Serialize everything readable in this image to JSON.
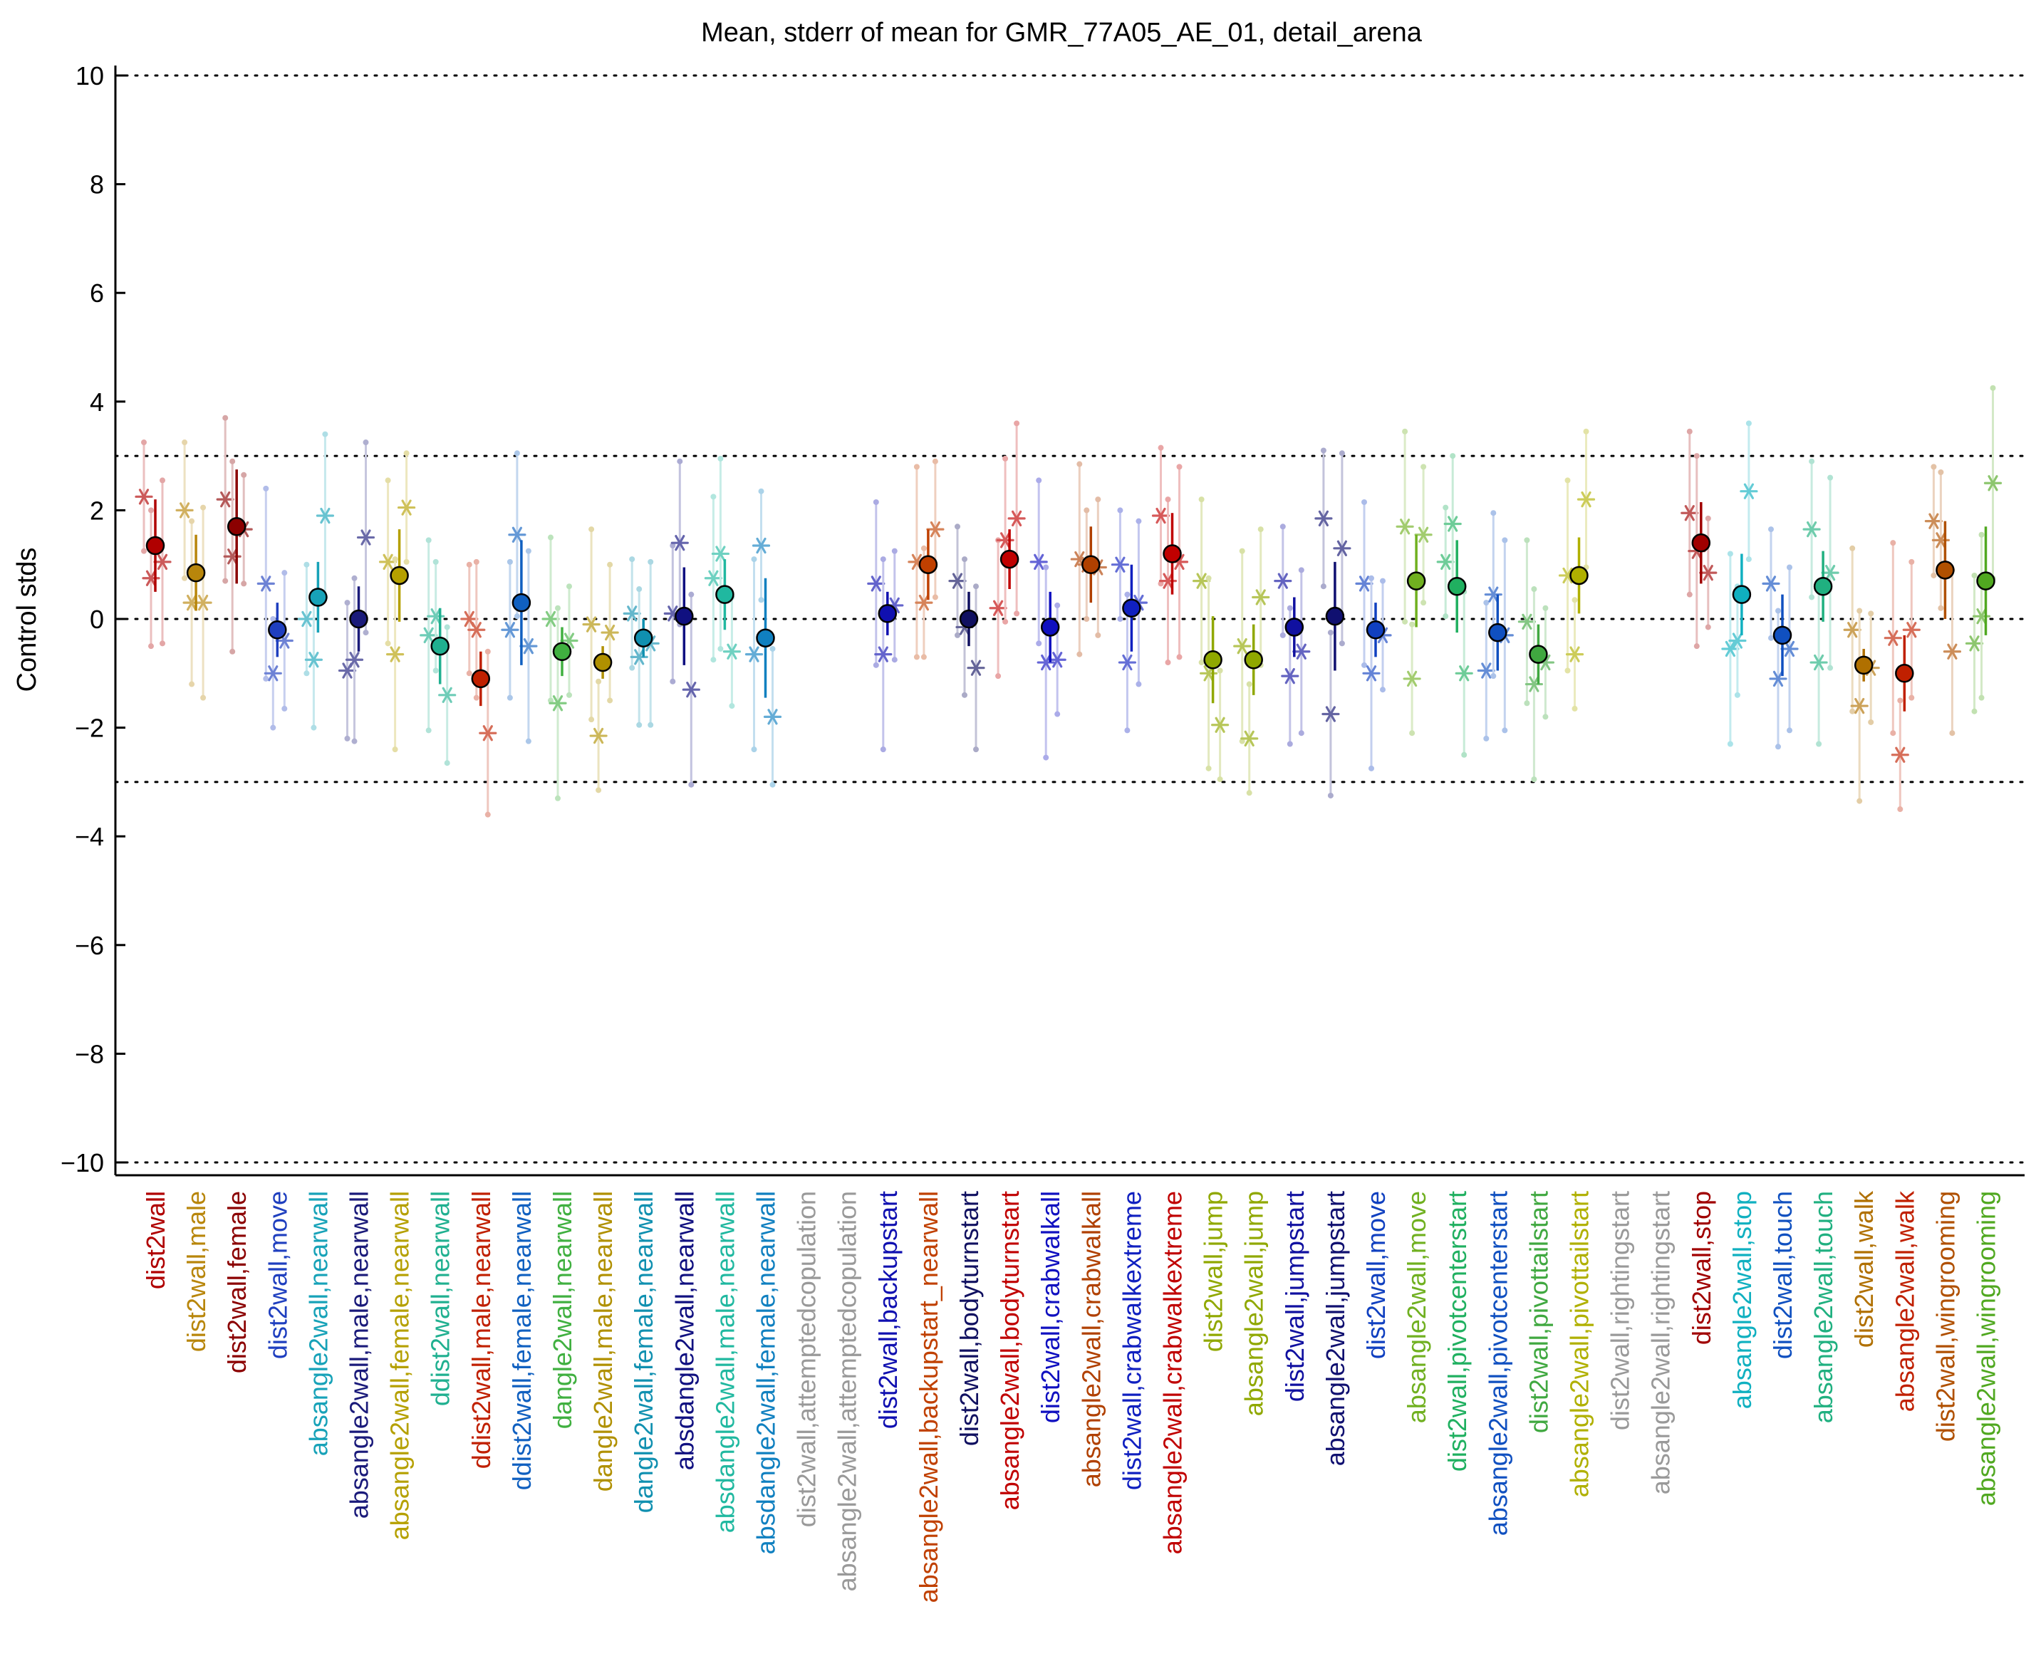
{
  "chart_data": {
    "type": "scatter",
    "title": "Mean, stderr of mean for GMR_77A05_AE_01, detail_arena",
    "xlabel": "",
    "ylabel": "Control stds",
    "ylim": [
      -10,
      10
    ],
    "yticks": [
      -10,
      -8,
      -6,
      -4,
      -2,
      0,
      2,
      4,
      6,
      8,
      10
    ],
    "reference_lines": [
      10,
      3,
      0,
      -3,
      -10
    ],
    "grid": false,
    "legend": "none",
    "categories": [
      "dist2wall",
      "dist2wall,male",
      "dist2wall,female",
      "dist2wall,move",
      "absangle2wall,nearwall",
      "absangle2wall,male,nearwall",
      "absangle2wall,female,nearwall",
      "ddist2wall,nearwall",
      "ddist2wall,male,nearwall",
      "ddist2wall,female,nearwall",
      "dangle2wall,nearwall",
      "dangle2wall,male,nearwall",
      "dangle2wall,female,nearwall",
      "absdangle2wall,nearwall",
      "absdangle2wall,male,nearwall",
      "absdangle2wall,female,nearwall",
      "dist2wall,attemptedcopulation",
      "absangle2wall,attemptedcopulation",
      "dist2wall,backupstart",
      "absangle2wall,backupstart_nearwall",
      "dist2wall,bodyturnstart",
      "absangle2wall,bodyturnstart",
      "dist2wall,crabwalkall",
      "absangle2wall,crabwalkall",
      "dist2wall,crabwalkextreme",
      "absangle2wall,crabwalkextreme",
      "dist2wall,jump",
      "absangle2wall,jump",
      "dist2wall,jumpstart",
      "absangle2wall,jumpstart",
      "dist2wall,move",
      "absangle2wall,move",
      "dist2wall,pivotcenterstart",
      "absangle2wall,pivotcenterstart",
      "dist2wall,pivottailstart",
      "absangle2wall,pivottailstart",
      "dist2wall,rightingstart",
      "absangle2wall,rightingstart",
      "dist2wall,stop",
      "absangle2wall,stop",
      "dist2wall,touch",
      "absangle2wall,touch",
      "dist2wall,walk",
      "absangle2wall,walk",
      "dist2wall,wingrooming",
      "absangle2wall,wingrooming"
    ],
    "colors": [
      "#b00000",
      "#b8860b",
      "#8b0000",
      "#1f3fbf",
      "#17a2b8",
      "#1a1a7a",
      "#b5a000",
      "#20b090",
      "#c02000",
      "#1060c0",
      "#40b040",
      "#b09000",
      "#1090b0",
      "#101080",
      "#20b8a0",
      "#1080c0",
      "#999999",
      "#999999",
      "#1010b0",
      "#c04000",
      "#101060",
      "#c00000",
      "#1010c0",
      "#b04000",
      "#1020c0",
      "#c00000",
      "#90a800",
      "#90a800",
      "#1010a0",
      "#101070",
      "#1040c0",
      "#70b020",
      "#20b060",
      "#1050c0",
      "#40a840",
      "#b0b000",
      "#999999",
      "#999999",
      "#a00000",
      "#10b0c0",
      "#1050c0",
      "#20b080",
      "#b07000",
      "#c02000",
      "#b05000",
      "#50a820"
    ],
    "series": [
      {
        "name": "mean",
        "values": [
          1.35,
          0.85,
          1.7,
          -0.2,
          0.4,
          0.0,
          0.8,
          -0.5,
          -1.1,
          0.3,
          -0.6,
          -0.8,
          -0.35,
          0.05,
          0.45,
          -0.35,
          null,
          null,
          0.1,
          1.0,
          0.0,
          1.1,
          -0.15,
          1.0,
          0.2,
          1.2,
          -0.75,
          -0.75,
          -0.15,
          0.05,
          -0.2,
          0.7,
          0.6,
          -0.25,
          -0.65,
          0.8,
          null,
          null,
          1.4,
          0.45,
          -0.3,
          0.6,
          -0.85,
          -1.0,
          0.9,
          0.7
        ]
      },
      {
        "name": "stderr",
        "values": [
          0.85,
          0.7,
          1.05,
          0.5,
          0.65,
          0.6,
          0.85,
          0.7,
          0.5,
          1.15,
          0.45,
          0.3,
          0.35,
          0.9,
          0.65,
          1.1,
          null,
          null,
          0.4,
          0.65,
          0.5,
          0.55,
          0.65,
          0.7,
          0.8,
          0.75,
          0.8,
          0.65,
          0.55,
          1.0,
          0.5,
          0.85,
          0.85,
          0.7,
          0.55,
          0.7,
          null,
          null,
          0.75,
          0.75,
          0.75,
          0.65,
          0.3,
          0.7,
          0.9,
          1.0
        ]
      },
      {
        "name": "star_left",
        "values": [
          2.25,
          2.0,
          2.2,
          0.65,
          0.0,
          -0.95,
          1.05,
          -0.3,
          0.0,
          -0.2,
          0.0,
          -0.1,
          0.1,
          0.1,
          0.75,
          -0.65,
          null,
          null,
          0.65,
          1.05,
          0.7,
          0.2,
          1.05,
          1.1,
          1.0,
          1.9,
          0.7,
          -0.5,
          0.7,
          1.85,
          0.65,
          1.7,
          1.05,
          -0.95,
          -0.05,
          0.8,
          null,
          null,
          1.95,
          -0.55,
          0.65,
          1.65,
          -0.2,
          -0.35,
          1.8,
          -0.45
        ]
      },
      {
        "name": "star_mid",
        "values": [
          0.75,
          0.3,
          1.15,
          -1.0,
          -0.75,
          -0.75,
          -0.65,
          0.05,
          -0.2,
          1.55,
          -1.55,
          -2.15,
          -0.7,
          1.4,
          1.2,
          1.35,
          null,
          null,
          -0.65,
          0.3,
          -0.15,
          1.45,
          -0.8,
          1.0,
          -0.8,
          0.7,
          -1.0,
          -2.2,
          -1.05,
          -1.75,
          -1.0,
          -1.1,
          1.75,
          0.45,
          -1.2,
          -0.65,
          null,
          null,
          1.25,
          -0.4,
          -1.1,
          -0.8,
          -1.6,
          -2.5,
          1.45,
          0.05
        ]
      },
      {
        "name": "star_right",
        "values": [
          1.05,
          0.3,
          1.65,
          -0.4,
          1.9,
          1.5,
          2.05,
          -1.4,
          -2.1,
          -0.5,
          -0.4,
          -0.25,
          -0.45,
          -1.3,
          -0.6,
          -1.8,
          null,
          null,
          0.25,
          1.65,
          -0.9,
          1.85,
          -0.75,
          0.95,
          0.3,
          1.05,
          -1.95,
          0.4,
          -0.6,
          1.3,
          -0.3,
          1.55,
          -1.0,
          -0.3,
          -0.8,
          2.2,
          null,
          null,
          0.85,
          2.35,
          -0.55,
          0.85,
          -0.9,
          -0.2,
          -0.6,
          2.5
        ]
      }
    ]
  }
}
